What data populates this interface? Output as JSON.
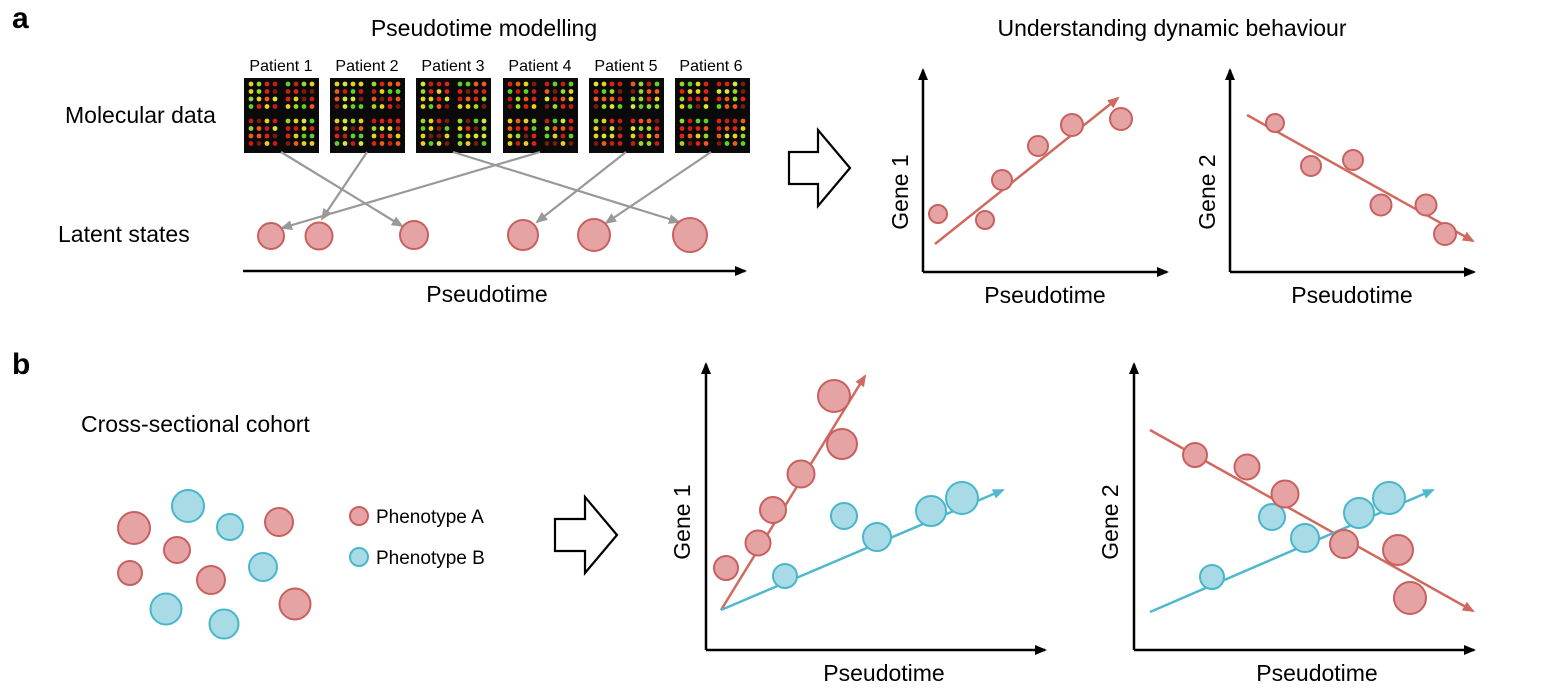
{
  "panel_a": {
    "letter": "a",
    "title_left": "Pseudotime modelling",
    "title_right": "Understanding dynamic behaviour",
    "row_label_molecular": "Molecular data",
    "row_label_latent": "Latent states",
    "axis_pseudotime": "Pseudotime",
    "patients": [
      "Patient 1",
      "Patient 2",
      "Patient 3",
      "Patient 4",
      "Patient 5",
      "Patient 6"
    ],
    "plot_gene1": {
      "ylabel": "Gene 1",
      "xlabel": "Pseudotime",
      "trend": "increasing",
      "points": [
        [
          0.05,
          0.3
        ],
        [
          0.3,
          0.25
        ],
        [
          0.33,
          0.45
        ],
        [
          0.5,
          0.6
        ],
        [
          0.63,
          0.73
        ],
        [
          0.85,
          0.76
        ]
      ]
    },
    "plot_gene2": {
      "ylabel": "Gene 2",
      "xlabel": "Pseudotime",
      "trend": "decreasing",
      "points": [
        [
          0.15,
          0.75
        ],
        [
          0.3,
          0.5
        ],
        [
          0.45,
          0.55
        ],
        [
          0.6,
          0.35
        ],
        [
          0.8,
          0.35
        ],
        [
          0.85,
          0.22
        ]
      ]
    }
  },
  "panel_b": {
    "letter": "b",
    "cohort_label": "Cross-sectional cohort",
    "legend": [
      {
        "label": "Phenotype A",
        "color": "#e5a3a3",
        "stroke": "#c96060"
      },
      {
        "label": "Phenotype B",
        "color": "#a8dbe6",
        "stroke": "#48b6cc"
      }
    ],
    "plot_gene1": {
      "ylabel": "Gene 1",
      "xlabel": "Pseudotime"
    },
    "plot_gene2": {
      "ylabel": "Gene 2",
      "xlabel": "Pseudotime"
    }
  },
  "colors": {
    "red_fill": "#e5a3a3",
    "red_stroke": "#c96060",
    "red_line": "#d06a5e",
    "blue_fill": "#a8dbe6",
    "blue_stroke": "#48b6cc",
    "blue_line": "#4fb8ce",
    "arrow_gray": "#999999"
  }
}
